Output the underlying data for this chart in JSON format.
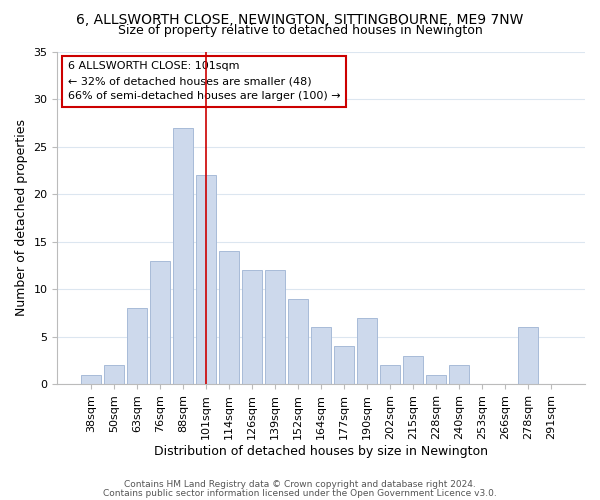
{
  "title": "6, ALLSWORTH CLOSE, NEWINGTON, SITTINGBOURNE, ME9 7NW",
  "subtitle": "Size of property relative to detached houses in Newington",
  "xlabel": "Distribution of detached houses by size in Newington",
  "ylabel": "Number of detached properties",
  "footer_line1": "Contains HM Land Registry data © Crown copyright and database right 2024.",
  "footer_line2": "Contains public sector information licensed under the Open Government Licence v3.0.",
  "bar_color": "#cdd9ec",
  "bar_edge_color": "#a8bbd8",
  "highlight_line_color": "#cc0000",
  "annotation_box_edge_color": "#cc0000",
  "background_color": "#ffffff",
  "grid_color": "#dce6f0",
  "categories": [
    "38sqm",
    "50sqm",
    "63sqm",
    "76sqm",
    "88sqm",
    "101sqm",
    "114sqm",
    "126sqm",
    "139sqm",
    "152sqm",
    "164sqm",
    "177sqm",
    "190sqm",
    "202sqm",
    "215sqm",
    "228sqm",
    "240sqm",
    "253sqm",
    "266sqm",
    "278sqm",
    "291sqm"
  ],
  "values": [
    1,
    2,
    8,
    13,
    27,
    22,
    14,
    12,
    12,
    9,
    6,
    4,
    7,
    2,
    3,
    1,
    2,
    0,
    0,
    6,
    0
  ],
  "highlight_index": 5,
  "annotation_line1": "6 ALLSWORTH CLOSE: 101sqm",
  "annotation_line2": "← 32% of detached houses are smaller (48)",
  "annotation_line3": "66% of semi-detached houses are larger (100) →",
  "ylim": [
    0,
    35
  ],
  "yticks": [
    0,
    5,
    10,
    15,
    20,
    25,
    30,
    35
  ],
  "title_fontsize": 10,
  "subtitle_fontsize": 9,
  "xlabel_fontsize": 9,
  "ylabel_fontsize": 9,
  "tick_fontsize": 8,
  "annotation_fontsize": 8,
  "footer_fontsize": 6.5
}
